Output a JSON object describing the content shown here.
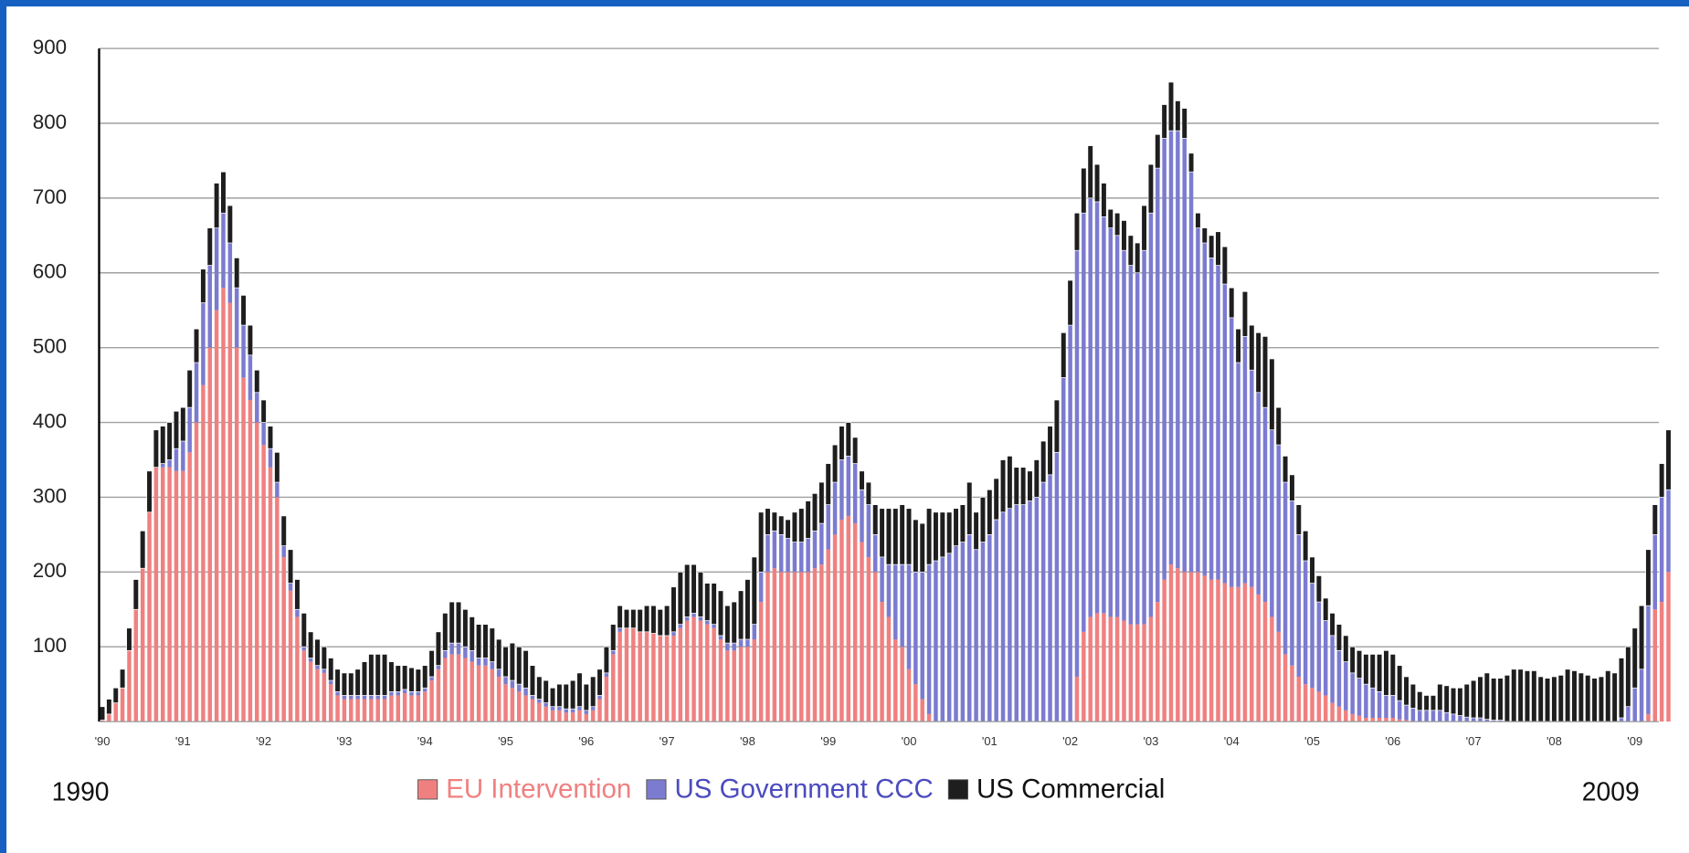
{
  "chart_data": {
    "type": "stacked_bar",
    "start_label": "1990",
    "end_label": "2009",
    "ylim": [
      0,
      900
    ],
    "yticks": [
      100,
      200,
      300,
      400,
      500,
      600,
      700,
      800,
      900
    ],
    "grid": true,
    "categories": [
      "'90",
      null,
      null,
      null,
      null,
      null,
      null,
      null,
      null,
      null,
      null,
      null,
      "'91",
      null,
      null,
      null,
      null,
      null,
      null,
      null,
      null,
      null,
      null,
      null,
      "'92",
      null,
      null,
      null,
      null,
      null,
      null,
      null,
      null,
      null,
      null,
      null,
      "'93",
      null,
      null,
      null,
      null,
      null,
      null,
      null,
      null,
      null,
      null,
      null,
      "'94",
      null,
      null,
      null,
      null,
      null,
      null,
      null,
      null,
      null,
      null,
      null,
      "'95",
      null,
      null,
      null,
      null,
      null,
      null,
      null,
      null,
      null,
      null,
      null,
      "'96",
      null,
      null,
      null,
      null,
      null,
      null,
      null,
      null,
      null,
      null,
      null,
      "'97",
      null,
      null,
      null,
      null,
      null,
      null,
      null,
      null,
      null,
      null,
      null,
      "'98",
      null,
      null,
      null,
      null,
      null,
      null,
      null,
      null,
      null,
      null,
      null,
      "'99",
      null,
      null,
      null,
      null,
      null,
      null,
      null,
      null,
      null,
      null,
      null,
      "'00",
      null,
      null,
      null,
      null,
      null,
      null,
      null,
      null,
      null,
      null,
      null,
      "'01",
      null,
      null,
      null,
      null,
      null,
      null,
      null,
      null,
      null,
      null,
      null,
      "'02",
      null,
      null,
      null,
      null,
      null,
      null,
      null,
      null,
      null,
      null,
      null,
      "'03",
      null,
      null,
      null,
      null,
      null,
      null,
      null,
      null,
      null,
      null,
      null,
      "'04",
      null,
      null,
      null,
      null,
      null,
      null,
      null,
      null,
      null,
      null,
      null,
      "'05",
      null,
      null,
      null,
      null,
      null,
      null,
      null,
      null,
      null,
      null,
      null,
      "'06",
      null,
      null,
      null,
      null,
      null,
      null,
      null,
      null,
      null,
      null,
      null,
      "'07",
      null,
      null,
      null,
      null,
      null,
      null,
      null,
      null,
      null,
      null,
      null,
      "'08",
      null,
      null,
      null,
      null,
      null,
      null,
      null,
      null,
      null,
      null,
      null,
      "'09",
      null,
      null,
      null,
      null,
      null
    ],
    "series": [
      {
        "name": "EU Intervention",
        "color": "#f08080",
        "values": [
          2,
          10,
          25,
          45,
          95,
          150,
          205,
          280,
          340,
          340,
          340,
          335,
          335,
          360,
          400,
          450,
          500,
          550,
          580,
          560,
          500,
          460,
          430,
          400,
          370,
          340,
          300,
          220,
          175,
          140,
          95,
          80,
          70,
          65,
          50,
          35,
          30,
          30,
          30,
          30,
          30,
          30,
          30,
          35,
          35,
          38,
          35,
          35,
          40,
          55,
          70,
          85,
          90,
          90,
          85,
          80,
          75,
          75,
          70,
          60,
          50,
          45,
          40,
          35,
          30,
          25,
          20,
          15,
          15,
          12,
          12,
          15,
          10,
          15,
          30,
          60,
          90,
          120,
          125,
          125,
          120,
          120,
          118,
          115,
          115,
          115,
          125,
          135,
          140,
          135,
          130,
          125,
          110,
          95,
          95,
          100,
          100,
          110,
          160,
          200,
          205,
          200,
          200,
          200,
          200,
          200,
          205,
          210,
          230,
          250,
          270,
          275,
          265,
          240,
          220,
          200,
          160,
          140,
          110,
          100,
          70,
          50,
          30,
          10,
          0,
          0,
          0,
          0,
          0,
          0,
          0,
          0,
          0,
          0,
          0,
          0,
          0,
          0,
          0,
          0,
          0,
          0,
          0,
          0,
          0,
          60,
          120,
          140,
          145,
          145,
          140,
          140,
          135,
          130,
          130,
          130,
          140,
          160,
          190,
          210,
          205,
          200,
          200,
          200,
          195,
          190,
          190,
          185,
          180,
          180,
          185,
          180,
          170,
          160,
          140,
          120,
          90,
          75,
          60,
          50,
          45,
          40,
          35,
          25,
          20,
          15,
          10,
          8,
          5,
          5,
          5,
          5,
          5,
          3,
          2,
          0,
          0,
          0,
          0,
          0,
          0,
          0,
          0,
          0,
          0,
          0,
          0,
          0,
          0,
          0,
          0,
          0,
          0,
          0,
          0,
          0,
          0,
          0,
          0,
          0,
          0,
          0,
          0,
          0,
          0,
          0,
          0,
          0,
          0,
          0,
          10,
          150,
          160,
          200
        ]
      },
      {
        "name": "US Government CCC",
        "color": "#7b7bd0",
        "values": [
          0,
          0,
          0,
          0,
          0,
          0,
          0,
          0,
          0,
          5,
          10,
          30,
          40,
          60,
          80,
          110,
          110,
          110,
          100,
          80,
          80,
          70,
          60,
          40,
          30,
          25,
          20,
          15,
          10,
          10,
          5,
          5,
          5,
          5,
          5,
          5,
          5,
          5,
          5,
          5,
          5,
          5,
          5,
          5,
          5,
          5,
          5,
          5,
          5,
          5,
          5,
          10,
          15,
          15,
          15,
          15,
          10,
          10,
          10,
          10,
          10,
          10,
          10,
          10,
          5,
          5,
          5,
          5,
          5,
          5,
          5,
          5,
          5,
          5,
          5,
          5,
          5,
          5,
          0,
          0,
          0,
          0,
          0,
          0,
          0,
          5,
          5,
          5,
          5,
          5,
          5,
          5,
          5,
          10,
          10,
          10,
          10,
          20,
          40,
          50,
          50,
          50,
          45,
          40,
          40,
          45,
          50,
          55,
          60,
          70,
          80,
          80,
          80,
          70,
          70,
          50,
          60,
          70,
          100,
          110,
          140,
          150,
          170,
          200,
          215,
          220,
          225,
          235,
          240,
          250,
          230,
          240,
          250,
          270,
          280,
          285,
          290,
          290,
          295,
          300,
          320,
          330,
          360,
          460,
          530,
          570,
          560,
          560,
          550,
          530,
          520,
          510,
          495,
          480,
          470,
          500,
          540,
          580,
          590,
          580,
          585,
          580,
          535,
          460,
          445,
          430,
          420,
          400,
          360,
          300,
          330,
          290,
          270,
          260,
          250,
          250,
          230,
          220,
          190,
          165,
          140,
          120,
          100,
          90,
          75,
          65,
          55,
          50,
          45,
          40,
          35,
          30,
          30,
          25,
          20,
          18,
          15,
          15,
          15,
          15,
          12,
          10,
          8,
          6,
          5,
          5,
          3,
          2,
          2,
          0,
          0,
          0,
          0,
          0,
          0,
          0,
          0,
          0,
          0,
          0,
          0,
          0,
          0,
          0,
          0,
          0,
          5,
          20,
          45,
          70,
          145,
          100,
          140,
          110
        ]
      },
      {
        "name": "US Commercial",
        "color": "#1e1e1e",
        "values": [
          18,
          20,
          20,
          25,
          30,
          40,
          50,
          55,
          50,
          50,
          50,
          50,
          45,
          50,
          45,
          45,
          50,
          60,
          55,
          50,
          40,
          40,
          40,
          30,
          30,
          30,
          40,
          40,
          45,
          40,
          45,
          35,
          35,
          30,
          30,
          30,
          30,
          30,
          35,
          45,
          55,
          55,
          55,
          40,
          35,
          32,
          32,
          30,
          30,
          35,
          45,
          50,
          55,
          55,
          50,
          45,
          45,
          45,
          45,
          40,
          40,
          50,
          50,
          50,
          40,
          30,
          30,
          25,
          30,
          33,
          38,
          45,
          35,
          40,
          35,
          35,
          35,
          30,
          25,
          25,
          30,
          35,
          37,
          35,
          40,
          60,
          70,
          70,
          65,
          60,
          50,
          55,
          60,
          50,
          55,
          65,
          80,
          90,
          80,
          35,
          25,
          25,
          25,
          40,
          45,
          50,
          50,
          55,
          55,
          50,
          45,
          45,
          35,
          25,
          30,
          40,
          65,
          75,
          75,
          80,
          75,
          70,
          65,
          75,
          65,
          60,
          55,
          50,
          50,
          70,
          50,
          60,
          60,
          55,
          70,
          70,
          50,
          50,
          40,
          50,
          55,
          65,
          70,
          60,
          60,
          50,
          60,
          70,
          50,
          45,
          25,
          30,
          40,
          40,
          40,
          60,
          65,
          45,
          45,
          65,
          40,
          40,
          25,
          20,
          20,
          30,
          45,
          50,
          40,
          45,
          60,
          60,
          80,
          95,
          95,
          50,
          35,
          35,
          40,
          40,
          35,
          35,
          30,
          30,
          35,
          35,
          35,
          37,
          40,
          45,
          50,
          60,
          55,
          47,
          38,
          32,
          25,
          20,
          20,
          35,
          36,
          35,
          37,
          44,
          50,
          55,
          62,
          56,
          56,
          62,
          70,
          70,
          68,
          68,
          60,
          58,
          60,
          62,
          70,
          68,
          65,
          62,
          58,
          60,
          68,
          65,
          80,
          80,
          80,
          85,
          75,
          40,
          45,
          80
        ]
      }
    ]
  }
}
